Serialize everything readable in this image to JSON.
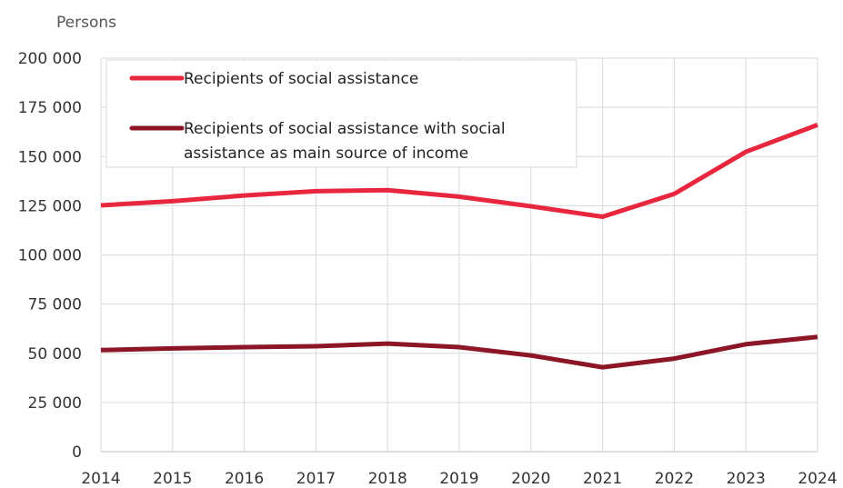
{
  "chart_data": {
    "type": "line",
    "title": "",
    "ylabel": "Persons",
    "xlabel": "",
    "x": [
      "2014",
      "2015",
      "2016",
      "2017",
      "2018",
      "2019",
      "2020",
      "2021",
      "2022",
      "2023",
      "2024"
    ],
    "ylim": [
      0,
      200000
    ],
    "y_ticks": [
      {
        "value": 0,
        "label": "0"
      },
      {
        "value": 25000,
        "label": "25 000"
      },
      {
        "value": 50000,
        "label": "50 000"
      },
      {
        "value": 75000,
        "label": "75 000"
      },
      {
        "value": 100000,
        "label": "100 000"
      },
      {
        "value": 125000,
        "label": "125 000"
      },
      {
        "value": 150000,
        "label": "150 000"
      },
      {
        "value": 175000,
        "label": "175 000"
      },
      {
        "value": 200000,
        "label": "200 000"
      }
    ],
    "grid": true,
    "legend_position": "top-left",
    "series": [
      {
        "name": "Recipients of social assistance",
        "color": "#e8273f",
        "values": [
          125200,
          127300,
          130200,
          132400,
          132900,
          129600,
          124700,
          119400,
          131000,
          152400,
          166100
        ]
      },
      {
        "name": "Recipients of social assistance with social assistance as main source of income",
        "name_lines": [
          "Recipients of social assistance with social",
          "assistance as main source of income"
        ],
        "color": "#8c1526",
        "values": [
          51600,
          52500,
          53100,
          53600,
          54900,
          53100,
          48900,
          42900,
          47300,
          54600,
          58300
        ]
      }
    ]
  }
}
